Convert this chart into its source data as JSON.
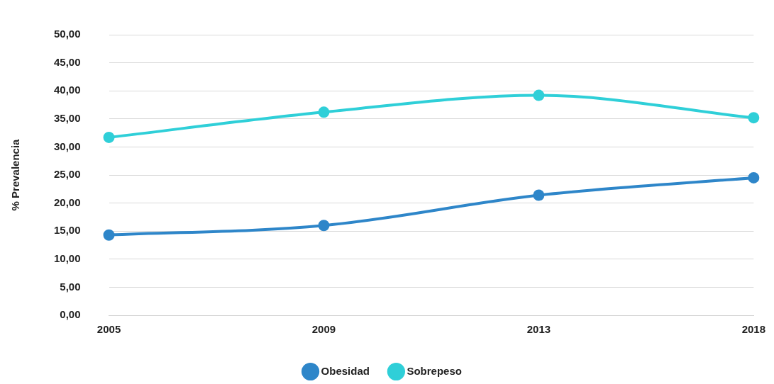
{
  "chart_data": {
    "type": "line",
    "ylabel": "% Prevalencia",
    "categories": [
      "2005",
      "2009",
      "2013",
      "2018"
    ],
    "series": [
      {
        "name": "Obesidad",
        "color": "#2e86c9",
        "values": [
          14.3,
          16.0,
          21.4,
          24.5
        ]
      },
      {
        "name": "Sobrepeso",
        "color": "#2fcfd8",
        "values": [
          31.7,
          36.2,
          39.2,
          35.2
        ]
      }
    ],
    "ylim": [
      0,
      50
    ],
    "yticks": [
      {
        "value": 0,
        "label": "0,00"
      },
      {
        "value": 5,
        "label": "5,00"
      },
      {
        "value": 10,
        "label": "10,00"
      },
      {
        "value": 15,
        "label": "15,00"
      },
      {
        "value": 20,
        "label": "20,00"
      },
      {
        "value": 25,
        "label": "25,00"
      },
      {
        "value": 30,
        "label": "30,00"
      },
      {
        "value": 35,
        "label": "35,00"
      },
      {
        "value": 40,
        "label": "40,00"
      },
      {
        "value": 45,
        "label": "45,00"
      },
      {
        "value": 50,
        "label": "50,00"
      }
    ],
    "grid": "y",
    "legend": "bottom",
    "marker": "circle",
    "line_style": "solid"
  }
}
